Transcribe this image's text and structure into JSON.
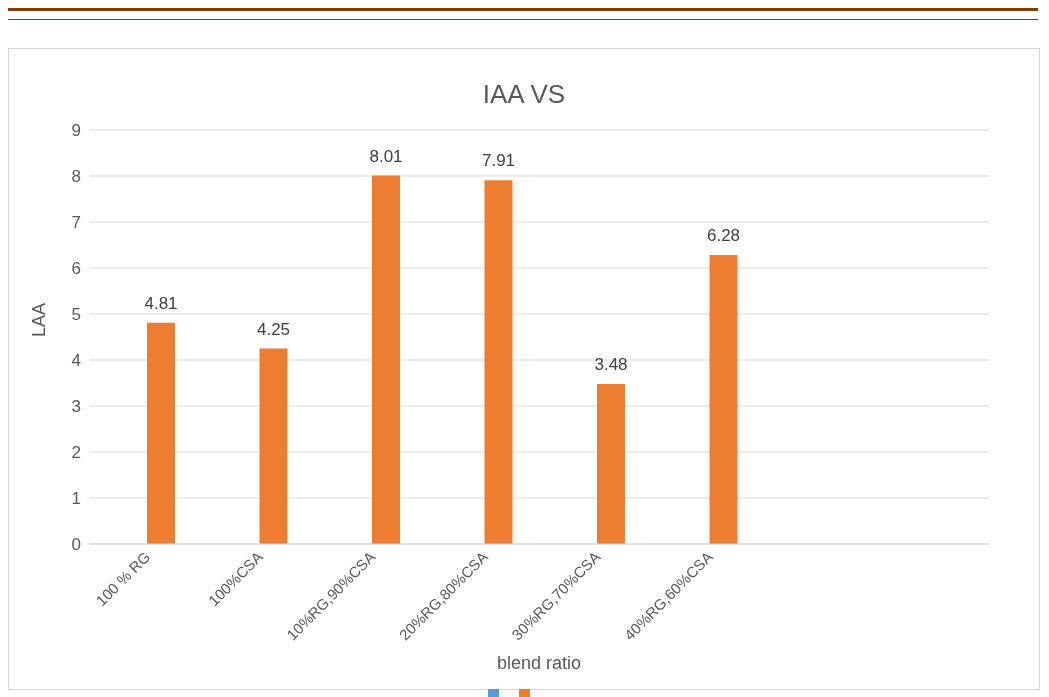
{
  "chart_data": {
    "type": "bar",
    "title": "IAA VS",
    "xlabel": "blend ratio",
    "ylabel": "LAA",
    "categories": [
      "100 % RG",
      "100%CSA",
      "10%RG,90%CSA",
      "20%RG,80%CSA",
      "30%RG,70%CSA",
      "40%RG,60%CSA",
      null,
      null
    ],
    "series": [
      {
        "color": "#5b9bd5",
        "values": [
          null,
          null,
          null,
          null,
          null,
          null,
          null,
          null
        ]
      },
      {
        "color": "#ed7d31",
        "values": [
          4.81,
          4.25,
          8.01,
          7.91,
          3.48,
          6.28,
          null,
          null
        ]
      }
    ],
    "ylim": [
      0,
      9
    ],
    "yticks": [
      0,
      1,
      2,
      3,
      4,
      5,
      6,
      7,
      8,
      9
    ],
    "grid": "y",
    "data_labels": true
  }
}
